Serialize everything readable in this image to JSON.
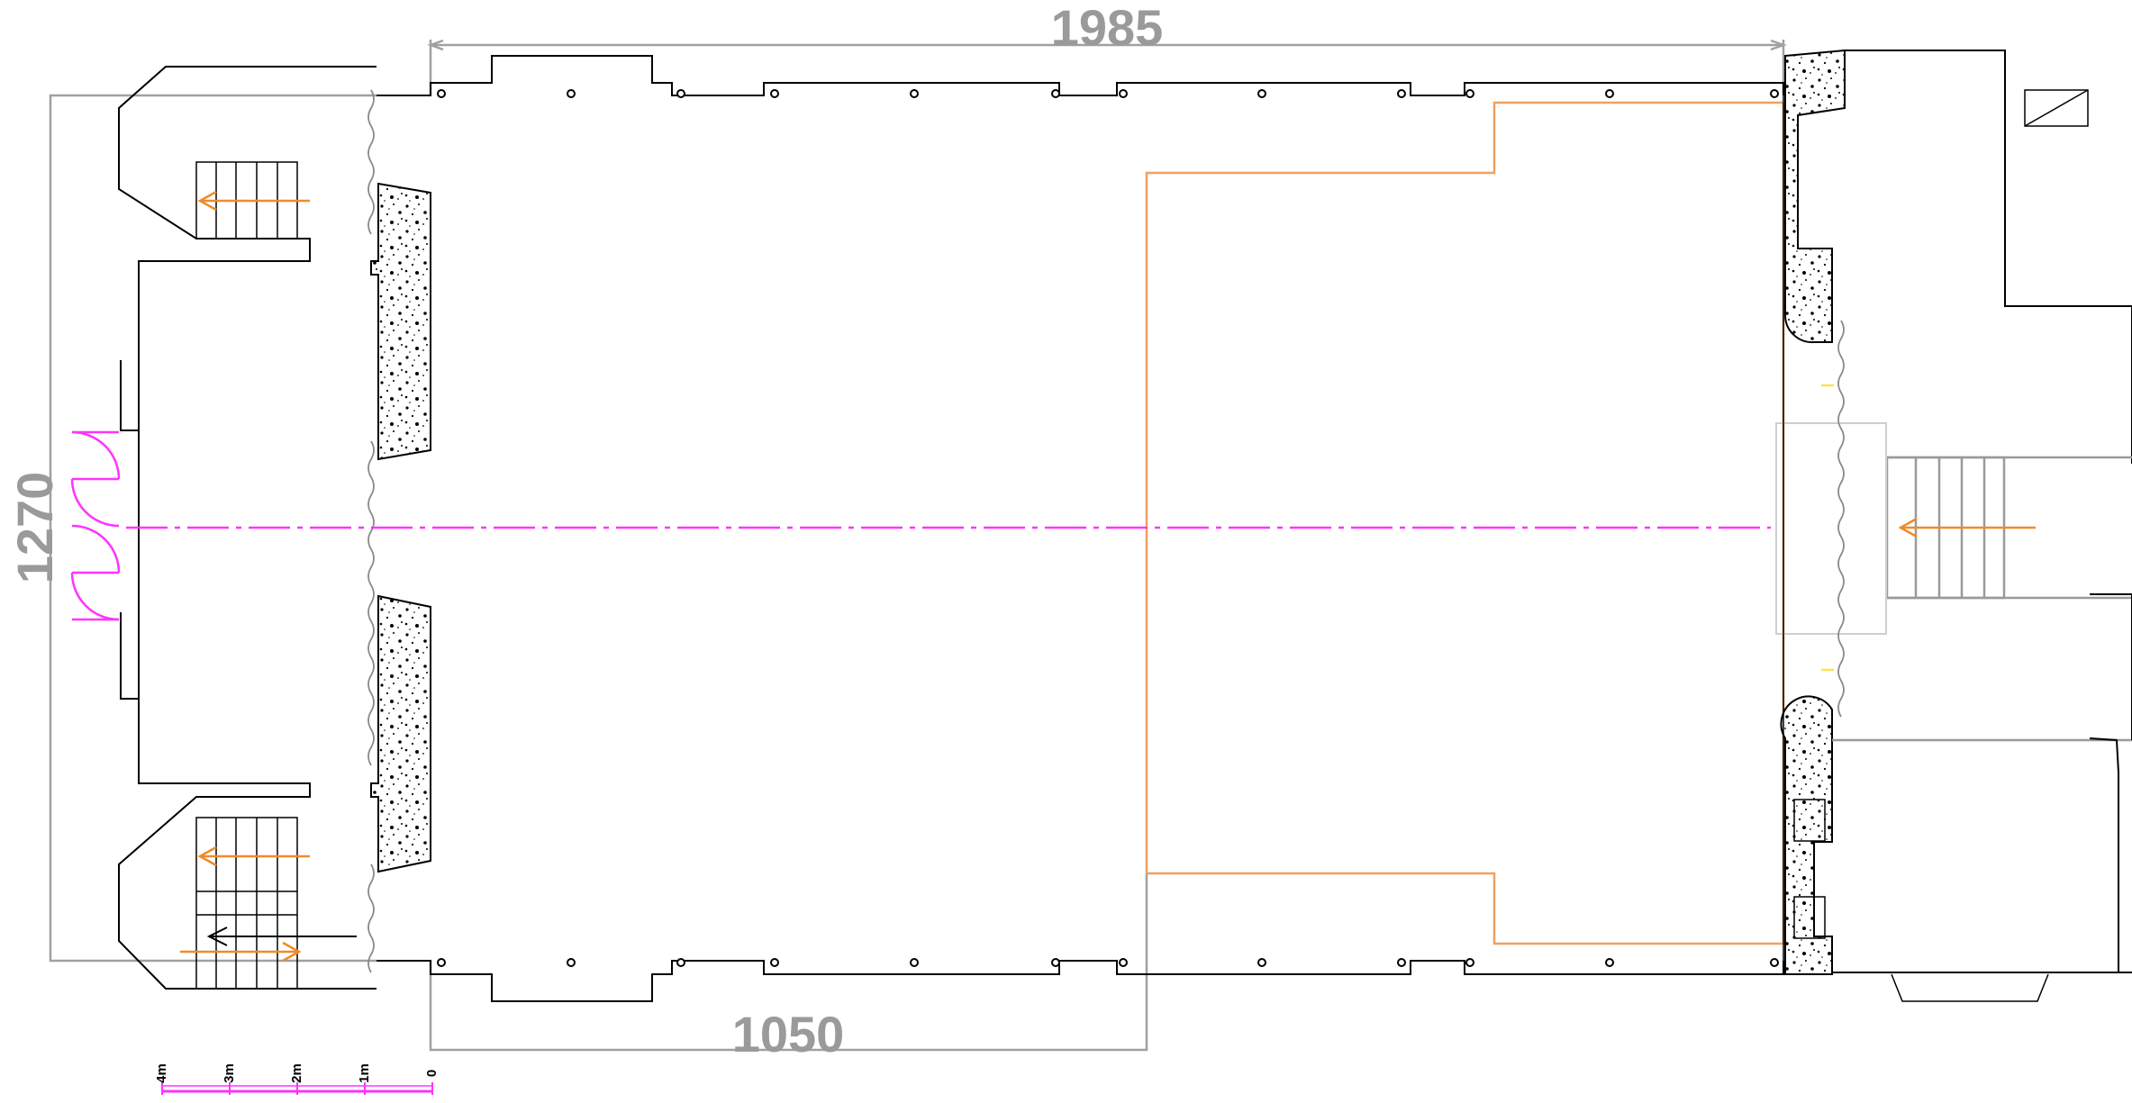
{
  "dimensions": {
    "top_width": "1985",
    "bottom_width": "1050",
    "left_height": "1270"
  },
  "scale_bar": {
    "labels": [
      "4m",
      "3m",
      "2m",
      "1m",
      "0"
    ]
  },
  "colors": {
    "walls": "#000000",
    "dimension_lines": "#a0a0a0",
    "stage_outline": "#f0a060",
    "exit_arrows": "#f08a28",
    "center_axis": "#ff33ff",
    "doors": "#ff33ff",
    "markers": "#ffe24d"
  }
}
